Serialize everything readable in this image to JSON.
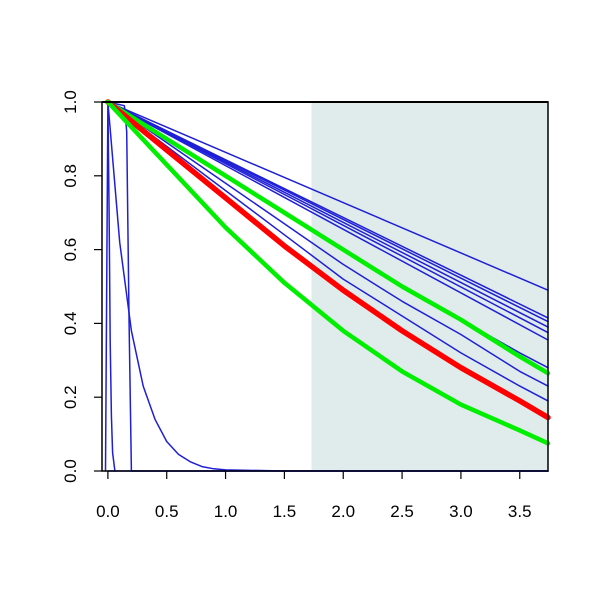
{
  "chart_data": {
    "type": "line",
    "title": "",
    "xlabel": "",
    "ylabel": "",
    "xlim": [
      -0.05,
      3.74
    ],
    "ylim": [
      0,
      1.0
    ],
    "xticks": [
      0.0,
      0.5,
      1.0,
      1.5,
      2.0,
      2.5,
      3.0,
      3.5
    ],
    "xtick_labels": [
      "0.0",
      "0.5",
      "1.0",
      "1.5",
      "2.0",
      "2.5",
      "3.0",
      "3.5"
    ],
    "yticks": [
      0.0,
      0.2,
      0.4,
      0.6,
      0.8,
      1.0
    ],
    "ytick_labels": [
      "0.0",
      "0.2",
      "0.4",
      "0.6",
      "0.8",
      "1.0"
    ],
    "grid": false,
    "legend": "none",
    "shaded_region": {
      "x_from": 1.73,
      "x_to": 3.74,
      "color": "#e0ecec"
    },
    "colors": {
      "blue": "#1f1fd6",
      "red": "#ff0000",
      "green": "#00ee00",
      "axis": "#000000"
    },
    "series": [
      {
        "color": "blue",
        "width": 1.5,
        "x": [
          -0.02,
          0.0,
          0.01,
          0.02,
          0.03,
          0.04,
          0.06
        ],
        "y": [
          0.0,
          1.0,
          0.7,
          0.35,
          0.15,
          0.05,
          0.0
        ]
      },
      {
        "color": "blue",
        "width": 1.5,
        "x": [
          0.0,
          0.1,
          0.2,
          0.3,
          0.4,
          0.5,
          0.6,
          0.7,
          0.8,
          0.9,
          1.0,
          1.5,
          3.74
        ],
        "y": [
          1.0,
          0.62,
          0.38,
          0.23,
          0.14,
          0.08,
          0.045,
          0.025,
          0.012,
          0.006,
          0.003,
          0.0,
          0.0
        ]
      },
      {
        "color": "blue",
        "width": 1.5,
        "x": [
          0.0,
          0.14,
          0.16,
          0.18,
          0.2,
          0.22,
          0.24,
          3.74
        ],
        "y": [
          1.0,
          0.99,
          0.92,
          0.4,
          0.0,
          0.0,
          0.0,
          0.0
        ]
      },
      {
        "color": "blue",
        "width": 1.5,
        "x": [
          0.0,
          3.74
        ],
        "y": [
          1.0,
          0.49
        ]
      },
      {
        "color": "blue",
        "width": 1.5,
        "x": [
          0.0,
          3.74
        ],
        "y": [
          1.0,
          0.415
        ]
      },
      {
        "color": "blue",
        "width": 1.5,
        "x": [
          0.0,
          3.74
        ],
        "y": [
          1.0,
          0.405
        ]
      },
      {
        "color": "blue",
        "width": 1.5,
        "x": [
          0.0,
          3.74
        ],
        "y": [
          1.0,
          0.39
        ]
      },
      {
        "color": "blue",
        "width": 1.5,
        "x": [
          0.0,
          3.74
        ],
        "y": [
          1.0,
          0.375
        ]
      },
      {
        "color": "blue",
        "width": 1.5,
        "x": [
          0.0,
          3.74
        ],
        "y": [
          1.0,
          0.355
        ]
      },
      {
        "color": "blue",
        "width": 1.5,
        "x": [
          0.0,
          0.5,
          1.0,
          1.5,
          2.0,
          2.5,
          3.0,
          3.5,
          3.74
        ],
        "y": [
          1.0,
          0.9,
          0.8,
          0.7,
          0.6,
          0.5,
          0.41,
          0.32,
          0.28
        ]
      },
      {
        "color": "blue",
        "width": 1.5,
        "x": [
          0.0,
          0.5,
          1.0,
          1.5,
          2.0,
          2.5,
          3.0,
          3.5,
          3.74
        ],
        "y": [
          1.0,
          0.89,
          0.78,
          0.67,
          0.56,
          0.46,
          0.37,
          0.27,
          0.23
        ]
      },
      {
        "color": "blue",
        "width": 1.5,
        "x": [
          0.0,
          0.5,
          1.0,
          1.5,
          2.0,
          2.5,
          3.0,
          3.5,
          3.74
        ],
        "y": [
          1.0,
          0.88,
          0.76,
          0.64,
          0.52,
          0.42,
          0.32,
          0.23,
          0.19
        ]
      },
      {
        "color": "green",
        "width": 4.5,
        "x": [
          0.0,
          0.5,
          1.0,
          1.5,
          2.0,
          2.5,
          3.0,
          3.5,
          3.74
        ],
        "y": [
          1.0,
          0.9,
          0.8,
          0.7,
          0.6,
          0.5,
          0.41,
          0.31,
          0.265
        ]
      },
      {
        "color": "red",
        "width": 5.5,
        "x": [
          0.0,
          0.5,
          1.0,
          1.5,
          2.0,
          2.5,
          3.0,
          3.5,
          3.74
        ],
        "y": [
          1.0,
          0.87,
          0.74,
          0.61,
          0.49,
          0.38,
          0.28,
          0.19,
          0.145
        ]
      },
      {
        "color": "green",
        "width": 4.5,
        "x": [
          0.0,
          0.5,
          1.0,
          1.5,
          2.0,
          2.5,
          3.0,
          3.5,
          3.74
        ],
        "y": [
          1.0,
          0.83,
          0.66,
          0.51,
          0.38,
          0.27,
          0.18,
          0.11,
          0.075
        ]
      },
      {
        "color": "blue",
        "width": 1.5,
        "x": [
          0.0,
          3.74
        ],
        "y": [
          0.0,
          0.0
        ]
      }
    ]
  }
}
